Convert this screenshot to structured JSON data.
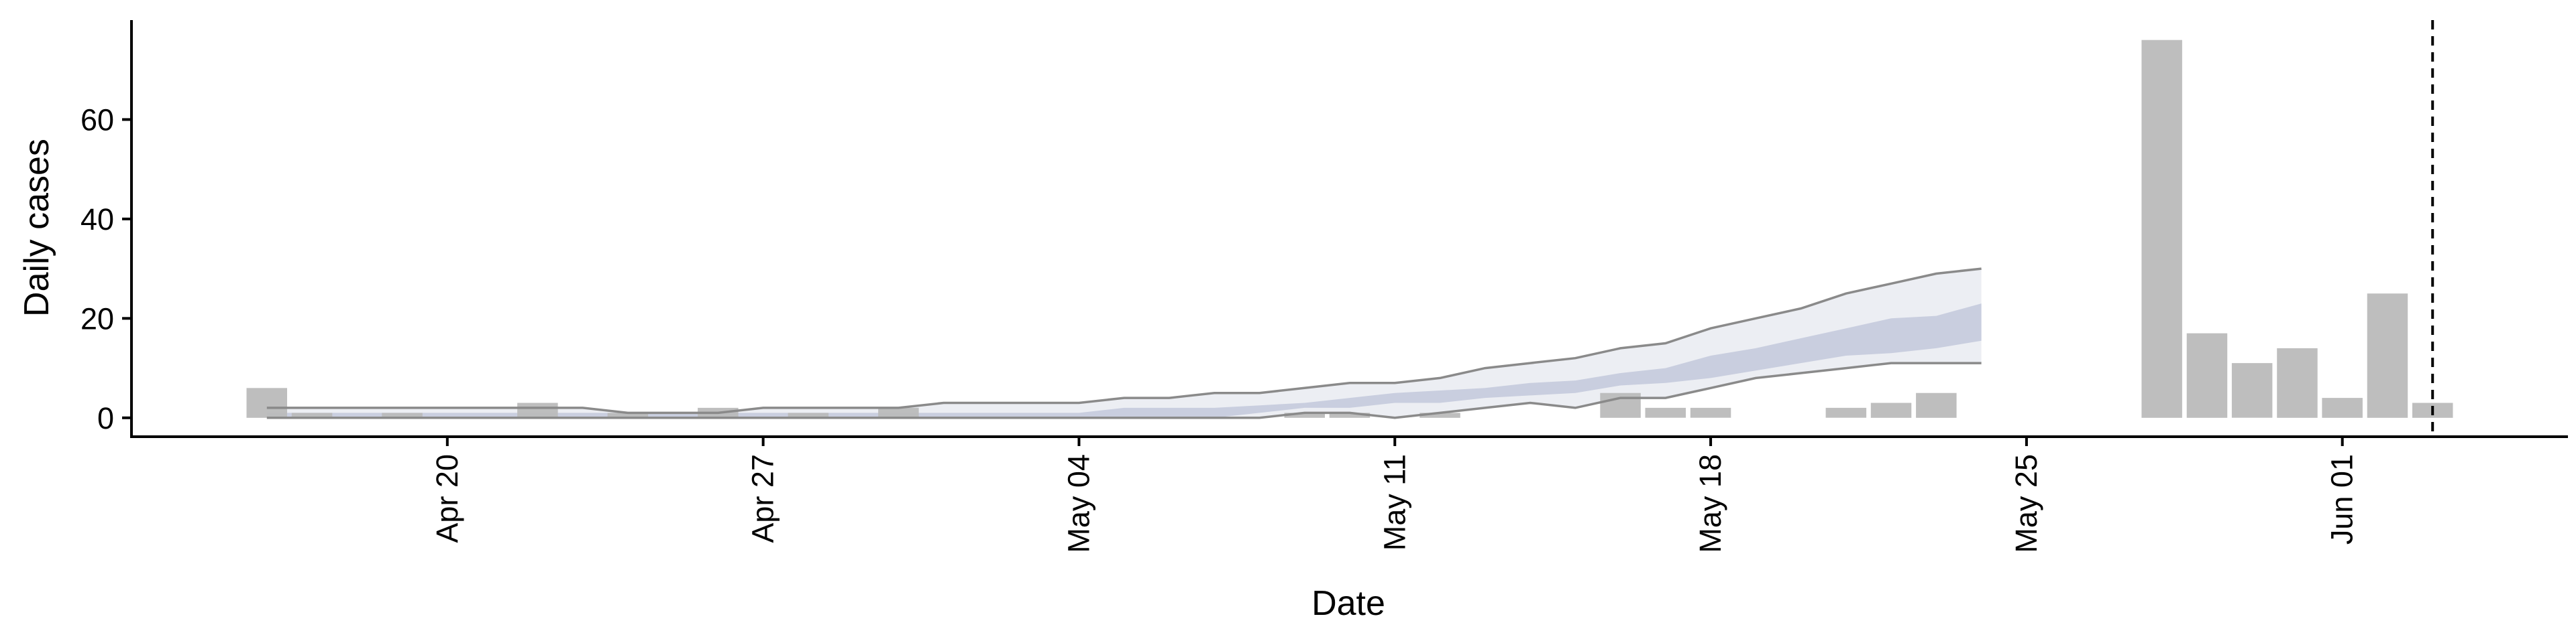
{
  "chart_data": {
    "type": "bar",
    "title": "",
    "xlabel": "Date",
    "ylabel": "Daily cases",
    "x_range": [
      "2020-04-13",
      "2020-06-06"
    ],
    "ylim": [
      -3.8,
      80
    ],
    "grid": false,
    "legend": "none",
    "x_ticks": [
      {
        "date": "2020-04-20",
        "label": "Apr 20"
      },
      {
        "date": "2020-04-27",
        "label": "Apr 27"
      },
      {
        "date": "2020-05-04",
        "label": "May 04"
      },
      {
        "date": "2020-05-11",
        "label": "May 11"
      },
      {
        "date": "2020-05-18",
        "label": "May 18"
      },
      {
        "date": "2020-05-25",
        "label": "May 25"
      },
      {
        "date": "2020-06-01",
        "label": "Jun 01"
      }
    ],
    "y_ticks": [
      0,
      20,
      40,
      60
    ],
    "bars": {
      "color": "#bbbbbb",
      "dates": [
        "2020-04-16",
        "2020-04-17",
        "2020-04-19",
        "2020-04-22",
        "2020-04-24",
        "2020-04-26",
        "2020-04-28",
        "2020-04-30",
        "2020-05-09",
        "2020-05-10",
        "2020-05-12",
        "2020-05-16",
        "2020-05-17",
        "2020-05-18",
        "2020-05-21",
        "2020-05-22",
        "2020-05-23",
        "2020-05-28",
        "2020-05-29",
        "2020-05-30",
        "2020-05-31",
        "2020-06-01",
        "2020-06-02",
        "2020-06-03"
      ],
      "values": [
        6,
        1,
        1,
        3,
        1,
        2,
        1,
        2,
        1,
        1,
        1,
        5,
        2,
        2,
        2,
        3,
        5,
        76,
        17,
        11,
        14,
        4,
        25,
        3
      ]
    },
    "estimate": {
      "dates": [
        "2020-04-16",
        "2020-04-17",
        "2020-04-18",
        "2020-04-19",
        "2020-04-20",
        "2020-04-21",
        "2020-04-22",
        "2020-04-23",
        "2020-04-24",
        "2020-04-25",
        "2020-04-26",
        "2020-04-27",
        "2020-04-28",
        "2020-04-29",
        "2020-04-30",
        "2020-05-01",
        "2020-05-02",
        "2020-05-03",
        "2020-05-04",
        "2020-05-05",
        "2020-05-06",
        "2020-05-07",
        "2020-05-08",
        "2020-05-09",
        "2020-05-10",
        "2020-05-11",
        "2020-05-12",
        "2020-05-13",
        "2020-05-14",
        "2020-05-15",
        "2020-05-16",
        "2020-05-17",
        "2020-05-18",
        "2020-05-19",
        "2020-05-20",
        "2020-05-21",
        "2020-05-22",
        "2020-05-23",
        "2020-05-24"
      ],
      "lower_90": [
        0,
        0,
        0,
        0,
        0,
        0,
        0,
        0,
        0,
        0,
        0,
        0,
        0,
        0,
        0,
        0,
        0,
        0,
        0,
        0,
        0,
        0,
        0,
        1,
        1,
        0,
        1,
        2,
        3,
        2,
        4,
        4,
        6,
        8,
        9,
        10,
        11,
        11,
        11
      ],
      "lower_50": [
        0,
        0,
        0,
        0,
        0,
        0,
        0,
        0,
        0,
        0,
        0,
        0,
        0,
        0,
        0,
        0,
        0,
        0,
        0,
        0,
        0,
        0,
        1,
        2,
        2,
        3,
        3,
        4,
        4.5,
        5,
        6.5,
        7,
        8,
        9.5,
        11,
        12.5,
        13,
        14,
        15.5
      ],
      "upper_50": [
        1,
        1,
        1,
        1,
        1,
        1,
        1,
        1,
        1,
        1,
        1,
        1,
        1,
        1,
        1,
        1,
        1,
        1,
        1,
        2,
        2,
        2,
        2.5,
        3,
        4,
        5,
        5.5,
        6,
        7,
        7.5,
        9,
        10,
        12.5,
        14,
        16,
        18,
        20,
        20.5,
        23
      ],
      "upper_90": [
        2,
        2,
        2,
        2,
        2,
        2,
        2,
        2,
        1,
        1,
        1,
        2,
        2,
        2,
        2,
        3,
        3,
        3,
        3,
        4,
        4,
        5,
        5,
        6,
        7,
        7,
        8,
        10,
        11,
        12,
        14,
        15,
        18,
        20,
        22,
        25,
        27,
        29,
        30
      ]
    },
    "band_colors": {
      "outer": "#eceef3",
      "inner": "#c9cedf",
      "edge": "#8a8a8a"
    },
    "vline": {
      "date": "2020-06-03",
      "style": "dashed"
    }
  }
}
